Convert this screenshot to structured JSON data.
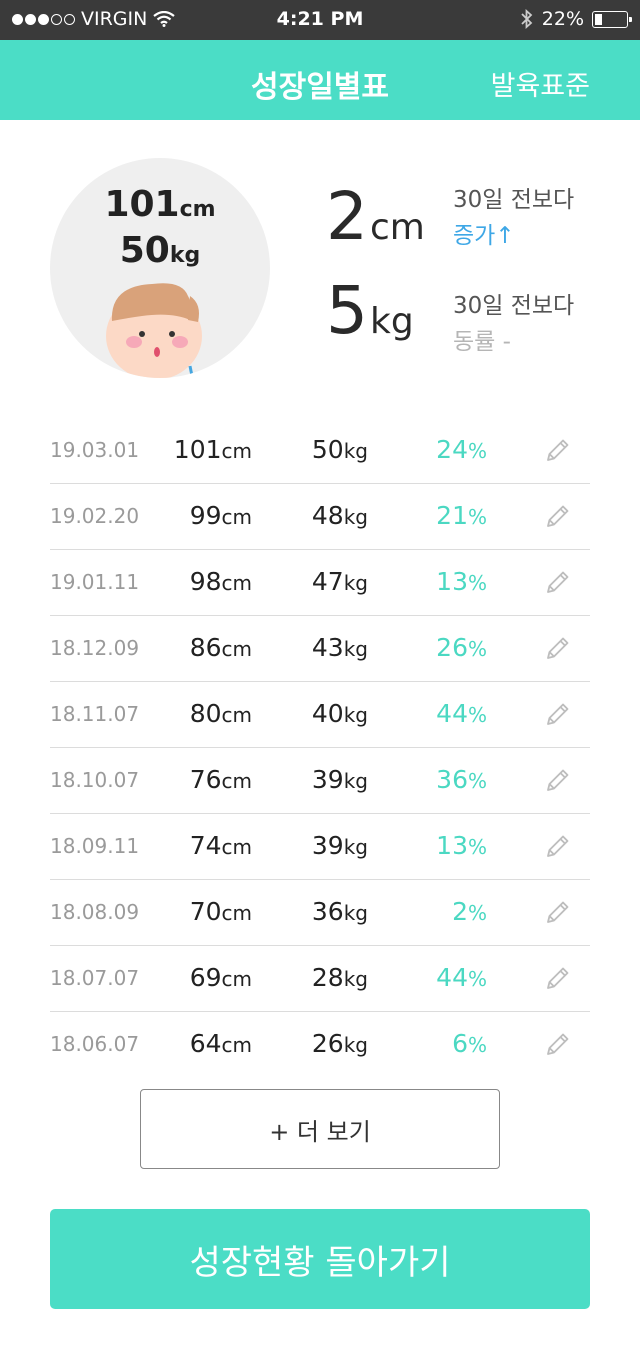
{
  "status_bar": {
    "carrier": "VIRGIN",
    "time": "4:21 PM",
    "battery": "22%"
  },
  "header": {
    "title": "성장일별표",
    "right_button": "발육표준"
  },
  "summary": {
    "current_height": "101",
    "current_height_unit": "cm",
    "current_weight": "50",
    "current_weight_unit": "kg",
    "height_change": "2",
    "height_change_unit": "cm",
    "weight_change": "5",
    "weight_change_unit": "kg",
    "height_compare_label": "30일 전보다",
    "height_compare_status": "증가↑",
    "weight_compare_label": "30일 전보다",
    "weight_compare_status": "동률 -"
  },
  "records": [
    {
      "date": "19.03.01",
      "height": "101",
      "weight": "50",
      "percent": "24"
    },
    {
      "date": "19.02.20",
      "height": "99",
      "weight": "48",
      "percent": "21"
    },
    {
      "date": "19.01.11",
      "height": "98",
      "weight": "47",
      "percent": "13"
    },
    {
      "date": "18.12.09",
      "height": "86",
      "weight": "43",
      "percent": "26"
    },
    {
      "date": "18.11.07",
      "height": "80",
      "weight": "40",
      "percent": "44"
    },
    {
      "date": "18.10.07",
      "height": "76",
      "weight": "39",
      "percent": "36"
    },
    {
      "date": "18.09.11",
      "height": "74",
      "weight": "39",
      "percent": "13"
    },
    {
      "date": "18.08.09",
      "height": "70",
      "weight": "36",
      "percent": "2"
    },
    {
      "date": "18.07.07",
      "height": "69",
      "weight": "28",
      "percent": "44"
    },
    {
      "date": "18.06.07",
      "height": "64",
      "weight": "26",
      "percent": "6"
    }
  ],
  "units": {
    "height": "cm",
    "weight": "kg",
    "percent": "%"
  },
  "buttons": {
    "more": "+ 더 보기",
    "back": "성장현황 돌아가기"
  },
  "colors": {
    "accent": "#4bddc6",
    "increase": "#3ea7e6",
    "percent": "#4bd8c2"
  }
}
